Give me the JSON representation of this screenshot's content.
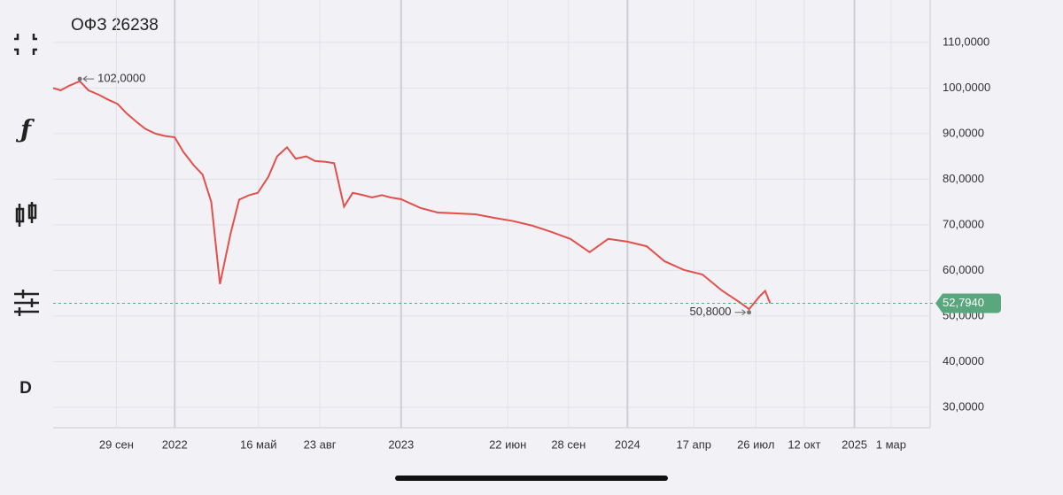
{
  "toolbar": [
    "ƒ",
    "D"
  ],
  "chart_data": {
    "type": "line",
    "title": "ОФЗ 26238",
    "color": "#e2504c",
    "x": [
      "2021-06-19",
      "2021-07-01",
      "2021-07-15",
      "2021-08-01",
      "2021-08-15",
      "2021-09-01",
      "2021-09-15",
      "2021-10-01",
      "2021-10-15",
      "2021-11-01",
      "2021-11-15",
      "2021-12-01",
      "2021-12-15",
      "2022-01-01",
      "2022-01-15",
      "2022-02-01",
      "2022-02-15",
      "2022-03-01",
      "2022-03-15",
      "2022-04-01",
      "2022-04-15",
      "2022-05-01",
      "2022-05-15",
      "2022-06-01",
      "2022-06-15",
      "2022-07-01",
      "2022-07-15",
      "2022-08-01",
      "2022-08-15",
      "2022-09-01",
      "2022-09-15",
      "2022-10-01",
      "2022-10-15",
      "2022-11-01",
      "2022-11-15",
      "2022-12-01",
      "2022-12-15",
      "2023-01-01",
      "2023-02-01",
      "2023-03-01",
      "2023-04-01",
      "2023-05-01",
      "2023-06-01",
      "2023-07-01",
      "2023-08-01",
      "2023-09-01",
      "2023-10-01",
      "2023-11-01",
      "2023-12-01",
      "2024-01-01",
      "2024-02-01",
      "2024-03-01",
      "2024-04-01",
      "2024-05-01",
      "2024-06-01",
      "2024-07-01",
      "2024-07-15",
      "2024-08-01",
      "2024-08-10",
      "2024-08-18"
    ],
    "values": [
      100,
      99.5,
      100.5,
      101.5,
      99.5,
      98.5,
      97.5,
      96.5,
      94.5,
      92.5,
      91,
      90,
      89.5,
      89.2,
      86,
      83,
      81,
      75,
      57,
      68,
      75.5,
      76.5,
      77,
      80.5,
      85,
      87,
      84.5,
      85,
      84,
      83.8,
      83.5,
      74,
      77,
      76.5,
      76,
      76.5,
      76,
      75.6,
      73.7,
      72.7,
      72.5,
      72.3,
      71.5,
      70.8,
      69.8,
      68.4,
      66.9,
      64,
      66.9,
      66.3,
      65.3,
      62,
      60.1,
      59.1,
      55.6,
      52.9,
      51.5,
      54.3,
      55.5,
      52.794
    ],
    "xlim": [
      "2021-06-19",
      "2025-05-03"
    ],
    "xticks": [
      {
        "value": "2021-09-29",
        "label": "29 сен"
      },
      {
        "value": "2022-01-01",
        "label": "2022"
      },
      {
        "value": "2022-05-16",
        "label": "16 май"
      },
      {
        "value": "2022-08-23",
        "label": "23 авг"
      },
      {
        "value": "2023-01-01",
        "label": "2023"
      },
      {
        "value": "2023-06-22",
        "label": "22 июн"
      },
      {
        "value": "2023-09-28",
        "label": "28 сен"
      },
      {
        "value": "2024-01-01",
        "label": "2024"
      },
      {
        "value": "2024-04-17",
        "label": "17 апр"
      },
      {
        "value": "2024-07-26",
        "label": "26 июл"
      },
      {
        "value": "2024-10-12",
        "label": "12 окт"
      },
      {
        "value": "2025-01-01",
        "label": "2025"
      },
      {
        "value": "2025-03-01",
        "label": "1 мар"
      }
    ],
    "ylim": [
      25.5,
      119.3
    ],
    "yticks": [
      {
        "value": 30,
        "label": "30,0000"
      },
      {
        "value": 40,
        "label": "40,0000"
      },
      {
        "value": 50,
        "label": "50,0000"
      },
      {
        "value": 60,
        "label": "60,0000"
      },
      {
        "value": 70,
        "label": "70,0000"
      },
      {
        "value": 80,
        "label": "80,0000"
      },
      {
        "value": 90,
        "label": "90,0000"
      },
      {
        "value": 100,
        "label": "100,0000"
      },
      {
        "value": 110,
        "label": "110,0000"
      }
    ],
    "grid": true,
    "annotations": [
      {
        "x": "2021-08-01",
        "value": 102,
        "label": "102,0000"
      },
      {
        "x": "2024-07-15",
        "value": 50.8,
        "label": "50,8000"
      }
    ],
    "last_price": {
      "value": 52.794,
      "label": "52,7940",
      "color": "#5aa77e"
    }
  }
}
